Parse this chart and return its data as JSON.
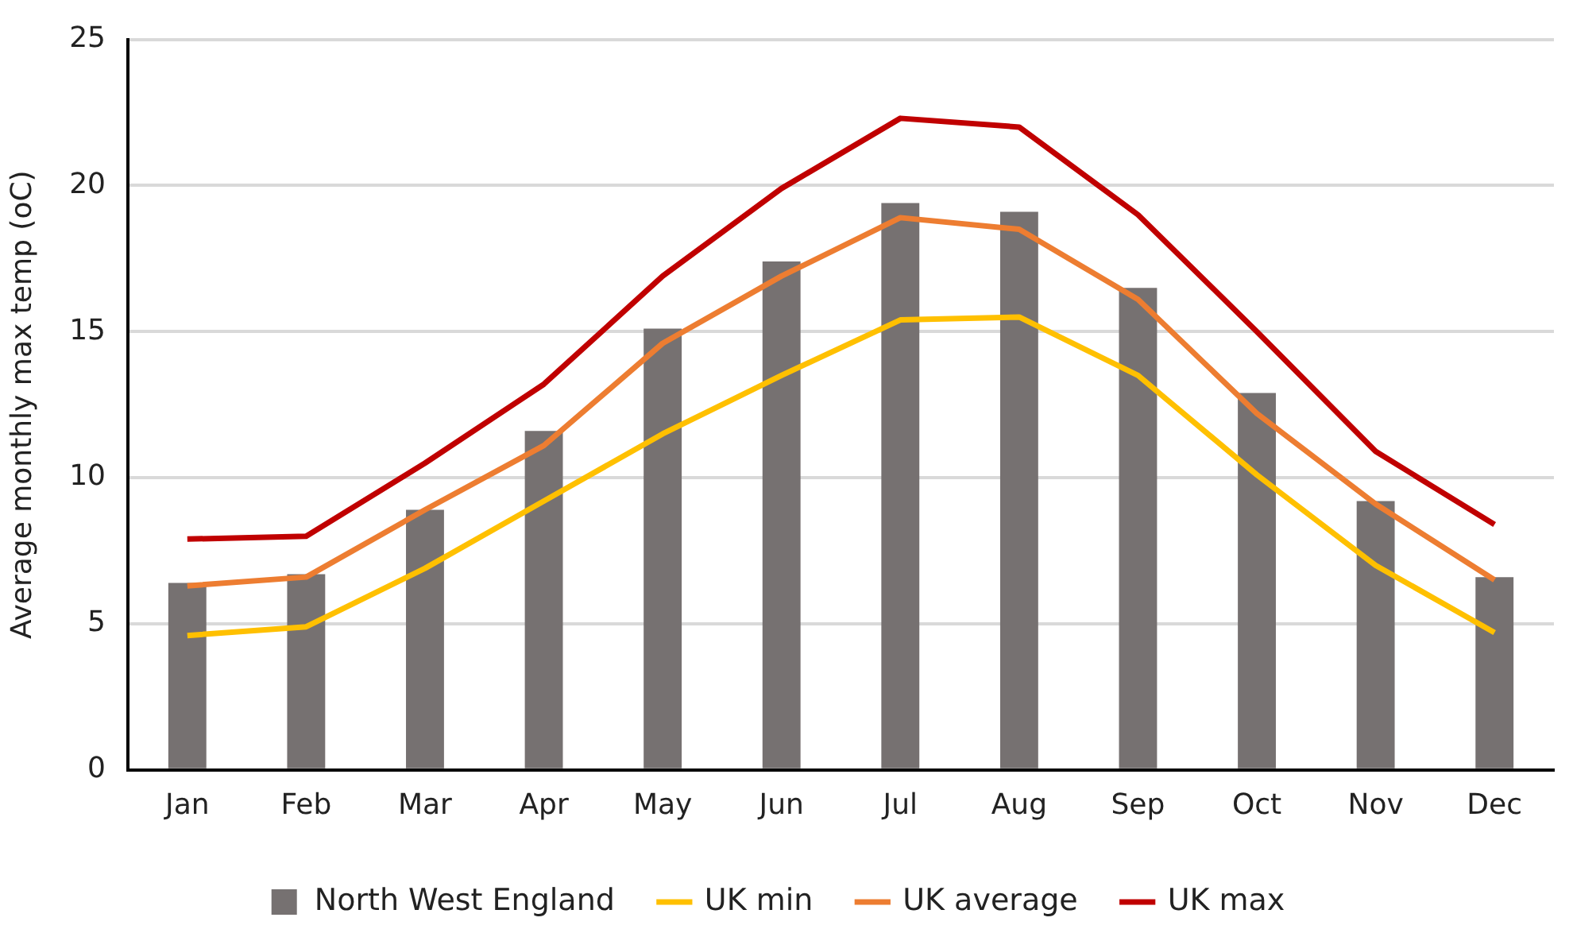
{
  "chart_data": {
    "type": "bar",
    "ylabel": "Average monthly max temp (oC)",
    "categories": [
      "Jan",
      "Feb",
      "Mar",
      "Apr",
      "May",
      "Jun",
      "Jul",
      "Aug",
      "Sep",
      "Oct",
      "Nov",
      "Dec"
    ],
    "series": [
      {
        "name": "North West England",
        "color": "#767171",
        "values": [
          6.4,
          6.7,
          8.9,
          11.6,
          15.1,
          17.4,
          19.4,
          19.1,
          16.5,
          12.9,
          9.2,
          6.6
        ]
      },
      {
        "name": "UK min",
        "type": "line",
        "color": "#ffc000",
        "values": [
          4.6,
          4.9,
          6.9,
          9.2,
          11.5,
          13.5,
          15.4,
          15.5,
          13.5,
          10.1,
          7.0,
          4.7
        ]
      },
      {
        "name": "UK average",
        "type": "line",
        "color": "#ed7d31",
        "values": [
          6.3,
          6.6,
          8.9,
          11.1,
          14.6,
          16.9,
          18.9,
          18.5,
          16.1,
          12.2,
          9.1,
          6.5
        ]
      },
      {
        "name": "UK max",
        "type": "line",
        "color": "#c00000",
        "values": [
          7.9,
          8.0,
          10.5,
          13.2,
          16.9,
          19.9,
          22.3,
          22.0,
          19.0,
          15.0,
          10.9,
          8.4
        ]
      }
    ],
    "ylim": [
      0,
      25
    ],
    "yticks": [
      0,
      5,
      10,
      15,
      20,
      25
    ],
    "grid": "y",
    "legend": "bottom"
  }
}
